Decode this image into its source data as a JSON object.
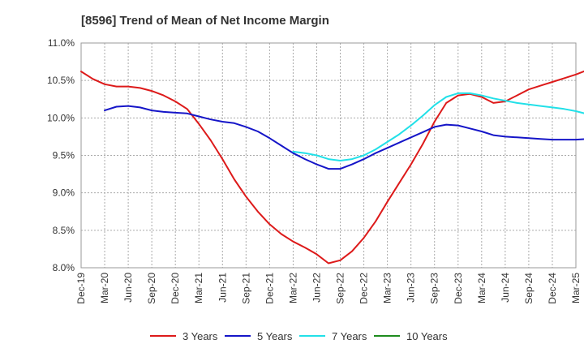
{
  "chart_data": {
    "type": "line",
    "title": "[8596]  Trend of Mean of Net Income Margin",
    "xlabel": "",
    "ylabel": "",
    "x_ticks": [
      "Dec-19",
      "Mar-20",
      "Jun-20",
      "Sep-20",
      "Dec-20",
      "Mar-21",
      "Jun-21",
      "Sep-21",
      "Dec-21",
      "Mar-22",
      "Jun-22",
      "Sep-22",
      "Dec-22",
      "Mar-23",
      "Jun-23",
      "Sep-23",
      "Dec-23",
      "Mar-24",
      "Jun-24",
      "Sep-24",
      "Dec-24",
      "Mar-25"
    ],
    "y_ticks": [
      "8.0%",
      "8.5%",
      "9.0%",
      "9.5%",
      "10.0%",
      "10.5%",
      "11.0%"
    ],
    "ylim": [
      8.0,
      11.0
    ],
    "grid": true,
    "grid_style": "dotted",
    "legend_position": "bottom",
    "series": [
      {
        "name": "3 Years",
        "color": "#dd1a1a",
        "points": [
          [
            0,
            10.62
          ],
          [
            1,
            10.52
          ],
          [
            2,
            10.45
          ],
          [
            3,
            10.42
          ],
          [
            4,
            10.42
          ],
          [
            5,
            10.4
          ],
          [
            6,
            10.36
          ],
          [
            7,
            10.3
          ],
          [
            8,
            10.22
          ],
          [
            9,
            10.12
          ],
          [
            10,
            9.92
          ],
          [
            11,
            9.7
          ],
          [
            12,
            9.45
          ],
          [
            13,
            9.18
          ],
          [
            14,
            8.95
          ],
          [
            15,
            8.75
          ],
          [
            16,
            8.58
          ],
          [
            17,
            8.45
          ],
          [
            18,
            8.35
          ],
          [
            19,
            8.27
          ],
          [
            20,
            8.18
          ],
          [
            21,
            8.06
          ],
          [
            22,
            8.1
          ],
          [
            23,
            8.22
          ],
          [
            24,
            8.4
          ],
          [
            25,
            8.62
          ],
          [
            26,
            8.88
          ],
          [
            27,
            9.13
          ],
          [
            28,
            9.38
          ],
          [
            29,
            9.65
          ],
          [
            30,
            9.95
          ],
          [
            31,
            10.2
          ],
          [
            32,
            10.3
          ],
          [
            33,
            10.32
          ],
          [
            34,
            10.28
          ],
          [
            35,
            10.2
          ],
          [
            36,
            10.22
          ],
          [
            37,
            10.3
          ],
          [
            38,
            10.38
          ],
          [
            39,
            10.43
          ],
          [
            40,
            10.48
          ],
          [
            41,
            10.53
          ],
          [
            42,
            10.58
          ],
          [
            43,
            10.64
          ],
          [
            44,
            10.69
          ]
        ]
      },
      {
        "name": "5 Years",
        "color": "#1515c8",
        "points": [
          [
            2,
            10.1
          ],
          [
            3,
            10.15
          ],
          [
            4,
            10.16
          ],
          [
            5,
            10.14
          ],
          [
            6,
            10.1
          ],
          [
            7,
            10.08
          ],
          [
            8,
            10.07
          ],
          [
            9,
            10.06
          ],
          [
            10,
            10.02
          ],
          [
            11,
            9.98
          ],
          [
            12,
            9.95
          ],
          [
            13,
            9.93
          ],
          [
            14,
            9.88
          ],
          [
            15,
            9.82
          ],
          [
            16,
            9.73
          ],
          [
            17,
            9.63
          ],
          [
            18,
            9.53
          ],
          [
            19,
            9.45
          ],
          [
            20,
            9.38
          ],
          [
            21,
            9.32
          ],
          [
            22,
            9.32
          ],
          [
            23,
            9.38
          ],
          [
            24,
            9.45
          ],
          [
            25,
            9.53
          ],
          [
            26,
            9.6
          ],
          [
            27,
            9.67
          ],
          [
            28,
            9.74
          ],
          [
            29,
            9.81
          ],
          [
            30,
            9.88
          ],
          [
            31,
            9.91
          ],
          [
            32,
            9.9
          ],
          [
            33,
            9.86
          ],
          [
            34,
            9.82
          ],
          [
            35,
            9.77
          ],
          [
            36,
            9.75
          ],
          [
            37,
            9.74
          ],
          [
            38,
            9.73
          ],
          [
            39,
            9.72
          ],
          [
            40,
            9.71
          ],
          [
            41,
            9.71
          ],
          [
            42,
            9.71
          ],
          [
            43,
            9.72
          ],
          [
            44,
            9.72
          ]
        ]
      },
      {
        "name": "7 Years",
        "color": "#22e0e8",
        "points": [
          [
            18,
            9.55
          ],
          [
            19,
            9.53
          ],
          [
            20,
            9.5
          ],
          [
            21,
            9.45
          ],
          [
            22,
            9.43
          ],
          [
            23,
            9.45
          ],
          [
            24,
            9.5
          ],
          [
            25,
            9.58
          ],
          [
            26,
            9.68
          ],
          [
            27,
            9.78
          ],
          [
            28,
            9.9
          ],
          [
            29,
            10.03
          ],
          [
            30,
            10.17
          ],
          [
            31,
            10.28
          ],
          [
            32,
            10.33
          ],
          [
            33,
            10.33
          ],
          [
            34,
            10.3
          ],
          [
            35,
            10.26
          ],
          [
            36,
            10.23
          ],
          [
            37,
            10.2
          ],
          [
            38,
            10.18
          ],
          [
            39,
            10.16
          ],
          [
            40,
            10.14
          ],
          [
            41,
            10.12
          ],
          [
            42,
            10.09
          ],
          [
            43,
            10.05
          ],
          [
            44,
            10.0
          ]
        ]
      },
      {
        "name": "10 Years",
        "color": "#1e8c1e",
        "points": []
      }
    ]
  }
}
